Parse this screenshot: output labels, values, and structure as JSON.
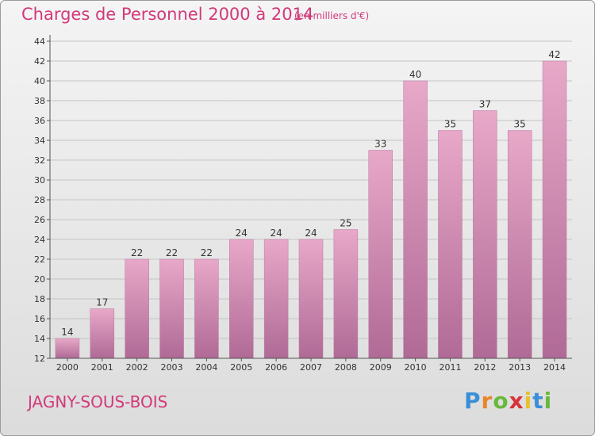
{
  "header": {
    "title": "Charges de Personnel 2000 à 2014",
    "subtitle": "(en milliers d'€)"
  },
  "footer": {
    "commune": "JAGNY-SOUS-BOIS",
    "brand": "Proxiti"
  },
  "colors": {
    "accent": "#d2397a",
    "bar_top": "#e8a8c8",
    "bar_bottom": "#b06a96"
  },
  "chart_data": {
    "type": "bar",
    "categories": [
      "2000",
      "2001",
      "2002",
      "2003",
      "2004",
      "2005",
      "2006",
      "2007",
      "2008",
      "2009",
      "2010",
      "2011",
      "2012",
      "2013",
      "2014"
    ],
    "values": [
      14,
      17,
      22,
      22,
      22,
      24,
      24,
      24,
      25,
      33,
      40,
      35,
      37,
      35,
      42
    ],
    "ylim": [
      12,
      44
    ],
    "yticks": [
      12,
      14,
      16,
      18,
      20,
      22,
      24,
      26,
      28,
      30,
      32,
      34,
      36,
      38,
      40,
      42,
      44
    ],
    "grid": true
  }
}
